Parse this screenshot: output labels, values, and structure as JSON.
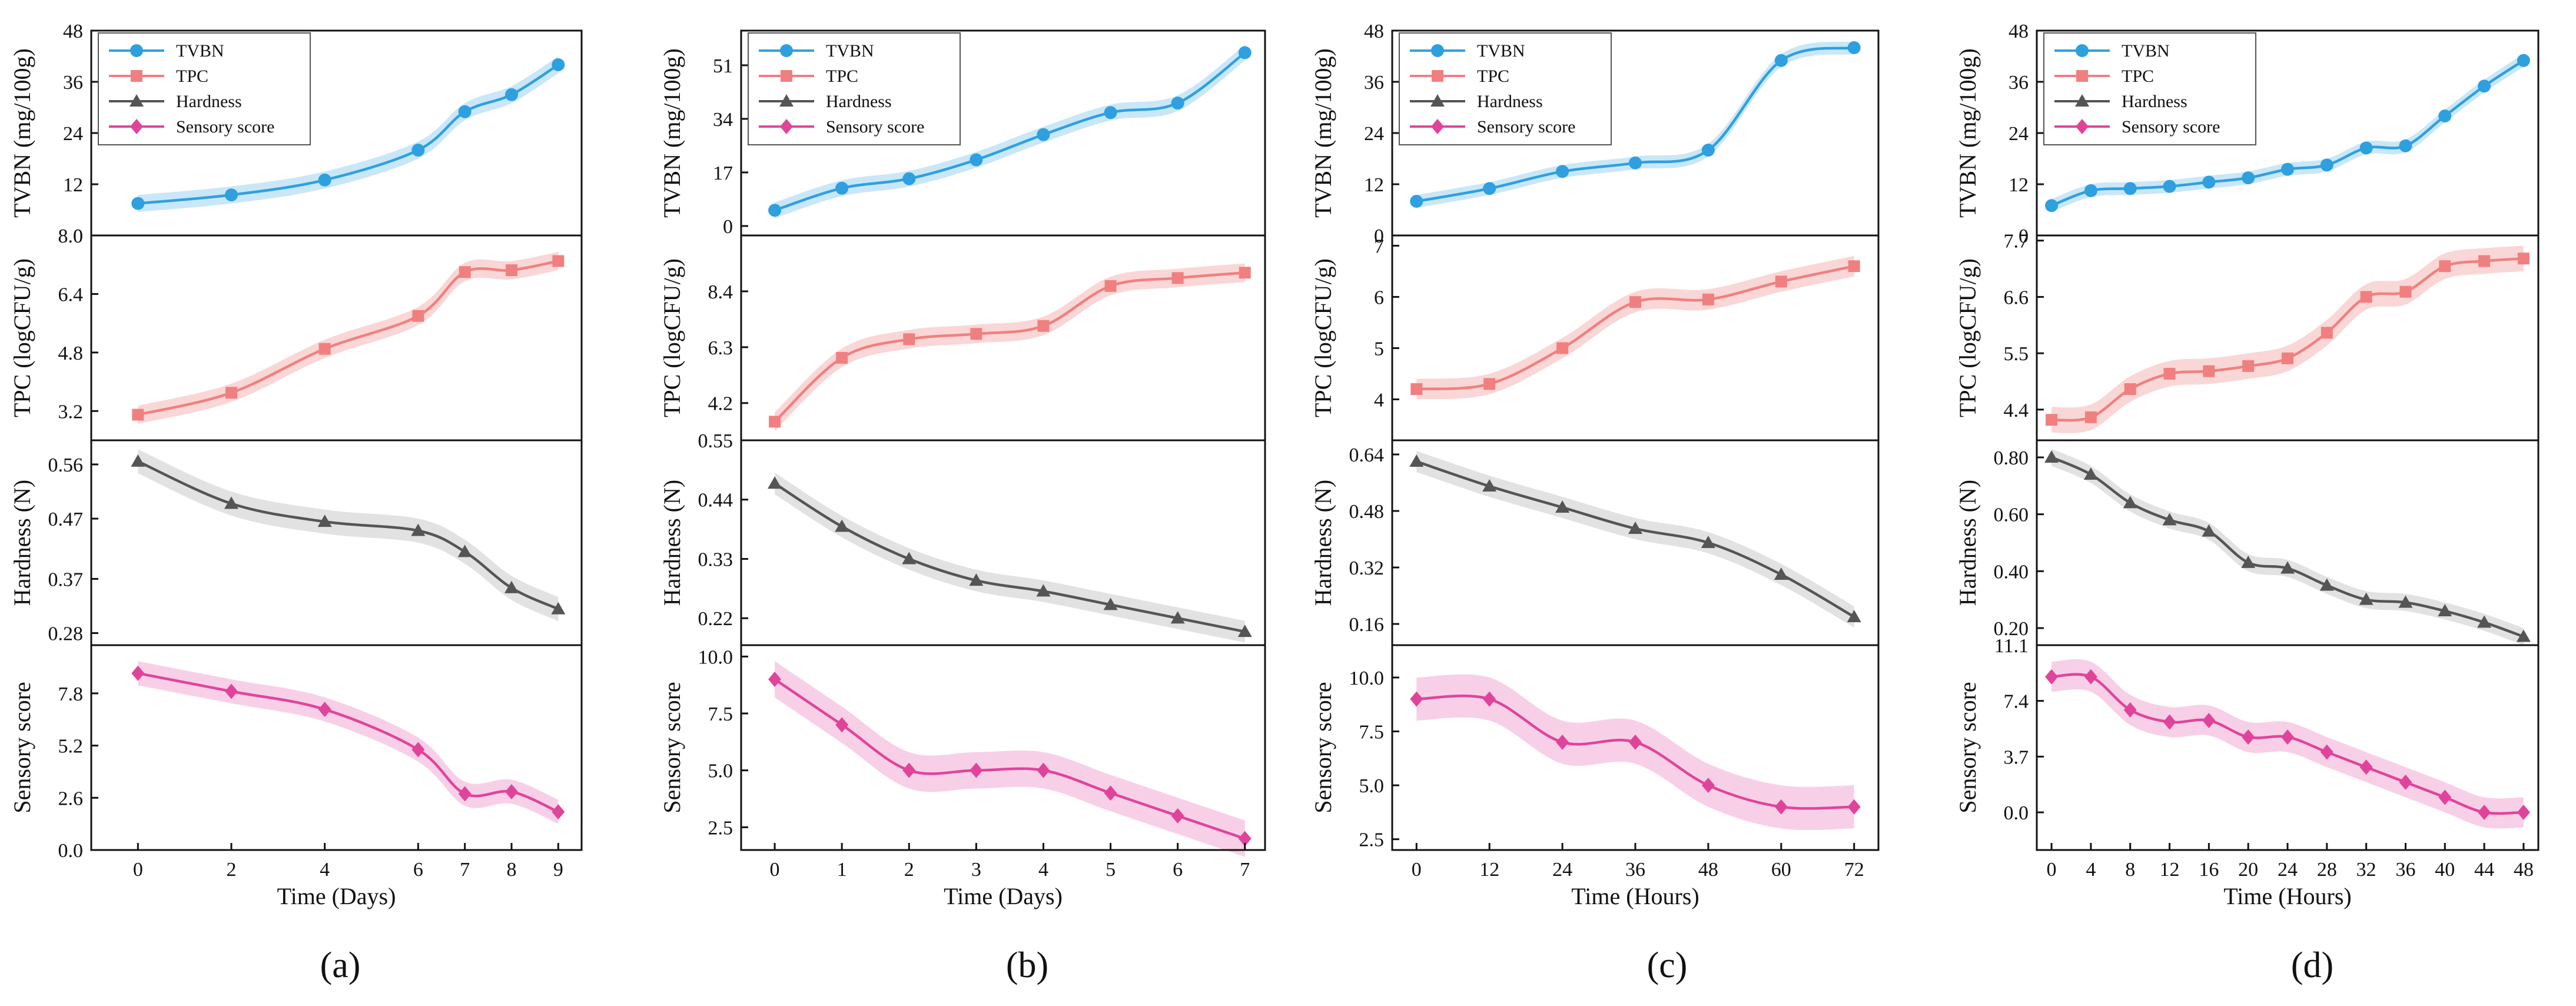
{
  "colors": {
    "TVBN": "#2fa0df",
    "TPC": "#f08080",
    "Hardness": "#555555",
    "Sensory score": "#e0449a",
    "TVBN_band": "#bfe3f6",
    "TPC_band": "#f8d0cf",
    "Hardness_band": "#dddddd",
    "Sensory score_band": "#f6c8e4"
  },
  "legend_labels": [
    "TVBN",
    "TPC",
    "Hardness",
    "Sensory score"
  ],
  "chart_data": [
    {
      "type": "line",
      "panel_label": "(a)",
      "xlabel": "Time (Days)",
      "x": [
        0,
        2,
        4,
        6,
        7,
        8,
        9
      ],
      "xlim": [
        -1,
        9.5
      ],
      "xticks": [
        "0",
        "2",
        "4",
        "6",
        "7",
        "8",
        "9"
      ],
      "series": [
        {
          "name": "TVBN",
          "ylabel": "TVBN (mg/100g)",
          "values": [
            7.5,
            9.5,
            13,
            20,
            29,
            33,
            40
          ],
          "band": 2,
          "ylim": [
            0,
            48
          ],
          "yticks": [
            "0",
            "12",
            "24",
            "36",
            "48"
          ]
        },
        {
          "name": "TPC",
          "ylabel": "TPC (logCFU/g)",
          "values": [
            3.1,
            3.7,
            4.9,
            5.8,
            7.0,
            7.05,
            7.3
          ],
          "band": 0.25,
          "ylim": [
            2.4,
            8.0
          ],
          "yticks": [
            "3.2",
            "4.8",
            "6.4",
            "8.0"
          ]
        },
        {
          "name": "Hardness",
          "ylabel": "Hardness (N)",
          "values": [
            0.565,
            0.495,
            0.465,
            0.45,
            0.415,
            0.355,
            0.32
          ],
          "band": 0.02,
          "ylim": [
            0.26,
            0.6
          ],
          "yticks": [
            "0.28",
            "0.37",
            "0.47",
            "0.56"
          ]
        },
        {
          "name": "Sensory score",
          "ylabel": "Sensory score",
          "values": [
            8.8,
            7.9,
            7.0,
            5.0,
            2.8,
            2.9,
            1.9
          ],
          "band": 0.6,
          "ylim": [
            0,
            10.2
          ],
          "yticks": [
            "0.0",
            "2.6",
            "5.2",
            "7.8"
          ]
        }
      ]
    },
    {
      "type": "line",
      "panel_label": "(b)",
      "xlabel": "Time (Days)",
      "x": [
        0,
        1,
        2,
        3,
        4,
        5,
        6,
        7
      ],
      "xlim": [
        -0.5,
        7.3
      ],
      "xticks": [
        "0",
        "1",
        "2",
        "3",
        "4",
        "5",
        "6",
        "7"
      ],
      "series": [
        {
          "name": "TVBN",
          "ylabel": "TVBN (mg/100g)",
          "values": [
            5,
            12,
            15,
            21,
            29,
            36,
            39,
            55
          ],
          "band": 2.5,
          "ylim": [
            -3,
            62
          ],
          "yticks": [
            "0",
            "17",
            "34",
            "51"
          ]
        },
        {
          "name": "TPC",
          "ylabel": "TPC (logCFU/g)",
          "values": [
            3.5,
            5.9,
            6.6,
            6.8,
            7.1,
            8.6,
            8.9,
            9.1
          ],
          "band": 0.35,
          "ylim": [
            2.8,
            10.5
          ],
          "yticks": [
            "4.2",
            "6.3",
            "8.4"
          ]
        },
        {
          "name": "Hardness",
          "ylabel": "Hardness (N)",
          "values": [
            0.47,
            0.39,
            0.33,
            0.29,
            0.27,
            0.245,
            0.22,
            0.195
          ],
          "band": 0.02,
          "ylim": [
            0.17,
            0.55
          ],
          "yticks": [
            "0.22",
            "0.33",
            "0.44",
            "0.55"
          ]
        },
        {
          "name": "Sensory score",
          "ylabel": "Sensory score",
          "values": [
            9.0,
            7.0,
            5.0,
            5.0,
            5.0,
            4.0,
            3.0,
            2.0
          ],
          "band": 0.8,
          "ylim": [
            1.5,
            10.5
          ],
          "yticks": [
            "2.5",
            "5.0",
            "7.5",
            "10.0"
          ]
        }
      ]
    },
    {
      "type": "line",
      "panel_label": "(c)",
      "xlabel": "Time (Hours)",
      "x": [
        0,
        12,
        24,
        36,
        48,
        60,
        72
      ],
      "xlim": [
        -4,
        76
      ],
      "xticks": [
        "0",
        "12",
        "24",
        "36",
        "48",
        "60",
        "72"
      ],
      "series": [
        {
          "name": "TVBN",
          "ylabel": "TVBN (mg/100g)",
          "values": [
            8,
            11,
            15,
            17,
            20,
            41,
            44
          ],
          "band": 1.5,
          "ylim": [
            0,
            48
          ],
          "yticks": [
            "0",
            "12",
            "24",
            "36",
            "48"
          ]
        },
        {
          "name": "TPC",
          "ylabel": "TPC (logCFU/g)",
          "values": [
            4.2,
            4.3,
            5.0,
            5.9,
            5.95,
            6.3,
            6.6
          ],
          "band": 0.2,
          "ylim": [
            3.2,
            7.2
          ],
          "yticks": [
            "4",
            "5",
            "6",
            "7"
          ]
        },
        {
          "name": "Hardness",
          "ylabel": "Hardness (N)",
          "values": [
            0.62,
            0.55,
            0.49,
            0.43,
            0.39,
            0.3,
            0.18
          ],
          "band": 0.03,
          "ylim": [
            0.1,
            0.68
          ],
          "yticks": [
            "0.16",
            "0.32",
            "0.48",
            "0.64"
          ]
        },
        {
          "name": "Sensory score",
          "ylabel": "Sensory score",
          "values": [
            9.0,
            9.0,
            7.0,
            7.0,
            5.0,
            4.0,
            4.0
          ],
          "band": 1.0,
          "ylim": [
            2.0,
            11.5
          ],
          "yticks": [
            "2.5",
            "5.0",
            "7.5",
            "10.0"
          ]
        }
      ]
    },
    {
      "type": "line",
      "panel_label": "(d)",
      "xlabel": "Time (Hours)",
      "x": [
        0,
        4,
        8,
        12,
        16,
        20,
        24,
        28,
        32,
        36,
        40,
        44,
        48
      ],
      "xlim": [
        -1.5,
        49.5
      ],
      "xticks": [
        "0",
        "4",
        "8",
        "12",
        "16",
        "20",
        "24",
        "28",
        "32",
        "36",
        "40",
        "44",
        "48"
      ],
      "series": [
        {
          "name": "TVBN",
          "ylabel": "TVBN (mg/100g)",
          "values": [
            7,
            10.5,
            11,
            11.5,
            12.5,
            13.5,
            15.5,
            16.5,
            20.5,
            21,
            28,
            35,
            41
          ],
          "band": 1.5,
          "ylim": [
            0,
            48
          ],
          "yticks": [
            "0",
            "12",
            "24",
            "36",
            "48"
          ]
        },
        {
          "name": "TPC",
          "ylabel": "TPC (logCFU/g)",
          "values": [
            4.2,
            4.25,
            4.8,
            5.1,
            5.15,
            5.25,
            5.4,
            5.9,
            6.6,
            6.7,
            7.2,
            7.3,
            7.35
          ],
          "band": 0.25,
          "ylim": [
            3.8,
            7.8
          ],
          "yticks": [
            "4.4",
            "5.5",
            "6.6",
            "7.7"
          ]
        },
        {
          "name": "Hardness",
          "ylabel": "Hardness (N)",
          "values": [
            0.8,
            0.74,
            0.64,
            0.58,
            0.54,
            0.43,
            0.41,
            0.35,
            0.3,
            0.29,
            0.26,
            0.22,
            0.17
          ],
          "band": 0.03,
          "ylim": [
            0.14,
            0.86
          ],
          "yticks": [
            "0.20",
            "0.40",
            "0.60",
            "0.80"
          ]
        },
        {
          "name": "Sensory score",
          "ylabel": "Sensory score",
          "values": [
            9.0,
            9.0,
            6.8,
            6.0,
            6.1,
            5.0,
            5.0,
            4.0,
            3.0,
            2.0,
            1.0,
            0.0,
            0.0
          ],
          "band": 1.0,
          "ylim": [
            -2.5,
            11.1
          ],
          "yticks": [
            "0.0",
            "3.7",
            "7.4",
            "11.1"
          ]
        }
      ]
    }
  ]
}
